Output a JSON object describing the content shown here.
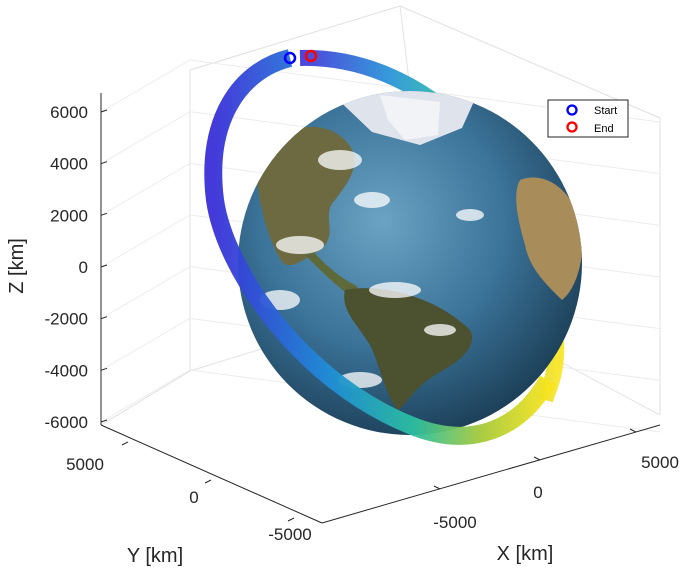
{
  "chart_data": {
    "type": "line",
    "subtype": "3d-orbit-ground-track",
    "xlabel": "X [km]",
    "ylabel": "Y [km]",
    "zlabel": "Z [km]",
    "x_ticks": [
      "-5000",
      "0",
      "5000"
    ],
    "y_ticks": [
      "5000",
      "0",
      "-5000"
    ],
    "z_ticks": [
      "6000",
      "4000",
      "2000",
      "0",
      "-2000",
      "-4000",
      "-6000"
    ],
    "zlim": [
      -6000,
      6000
    ],
    "grid": true,
    "legend_position": "top-right",
    "legend": [
      {
        "label": "Start",
        "color": "#0000ff"
      },
      {
        "label": "End",
        "color": "#ff0000"
      }
    ],
    "colormap": "parula (blue to yellow over time)",
    "series": [
      {
        "name": "Start",
        "marker": "circle"
      },
      {
        "name": "End",
        "marker": "circle"
      }
    ]
  },
  "colors": {
    "ocean": "#3f7aa0",
    "land": "#6f6d43",
    "ice": "#d4dae6",
    "orbit_start": "#3a2fd8",
    "orbit_end": "#f7e41e"
  }
}
